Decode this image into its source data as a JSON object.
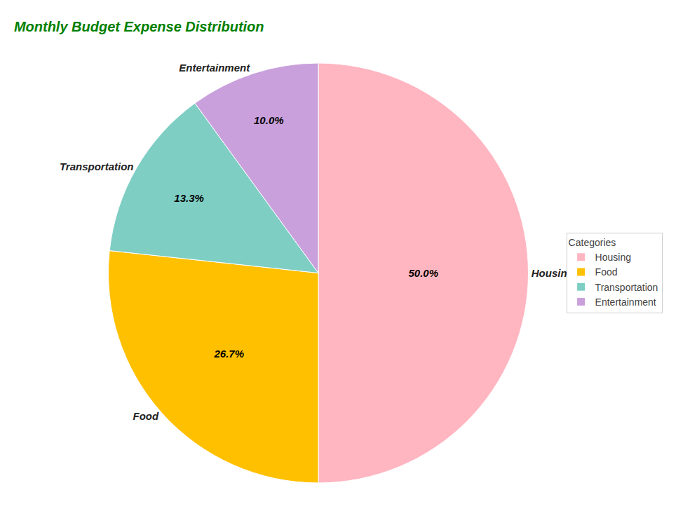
{
  "chart_data": {
    "type": "pie",
    "title": "Monthly Budget Expense Distribution",
    "categories": [
      "Housing",
      "Food",
      "Transportation",
      "Entertainment"
    ],
    "values": [
      50.0,
      26.7,
      13.3,
      10.0
    ],
    "value_labels": [
      "50.0%",
      "26.7%",
      "13.3%",
      "10.0%"
    ],
    "data_labels": true,
    "colors": [
      "#FFB6C1",
      "#FFC000",
      "#7ECEC4",
      "#C9A0DC"
    ],
    "title_color": "#008000",
    "legend": "right",
    "legend_title": "Categories"
  }
}
